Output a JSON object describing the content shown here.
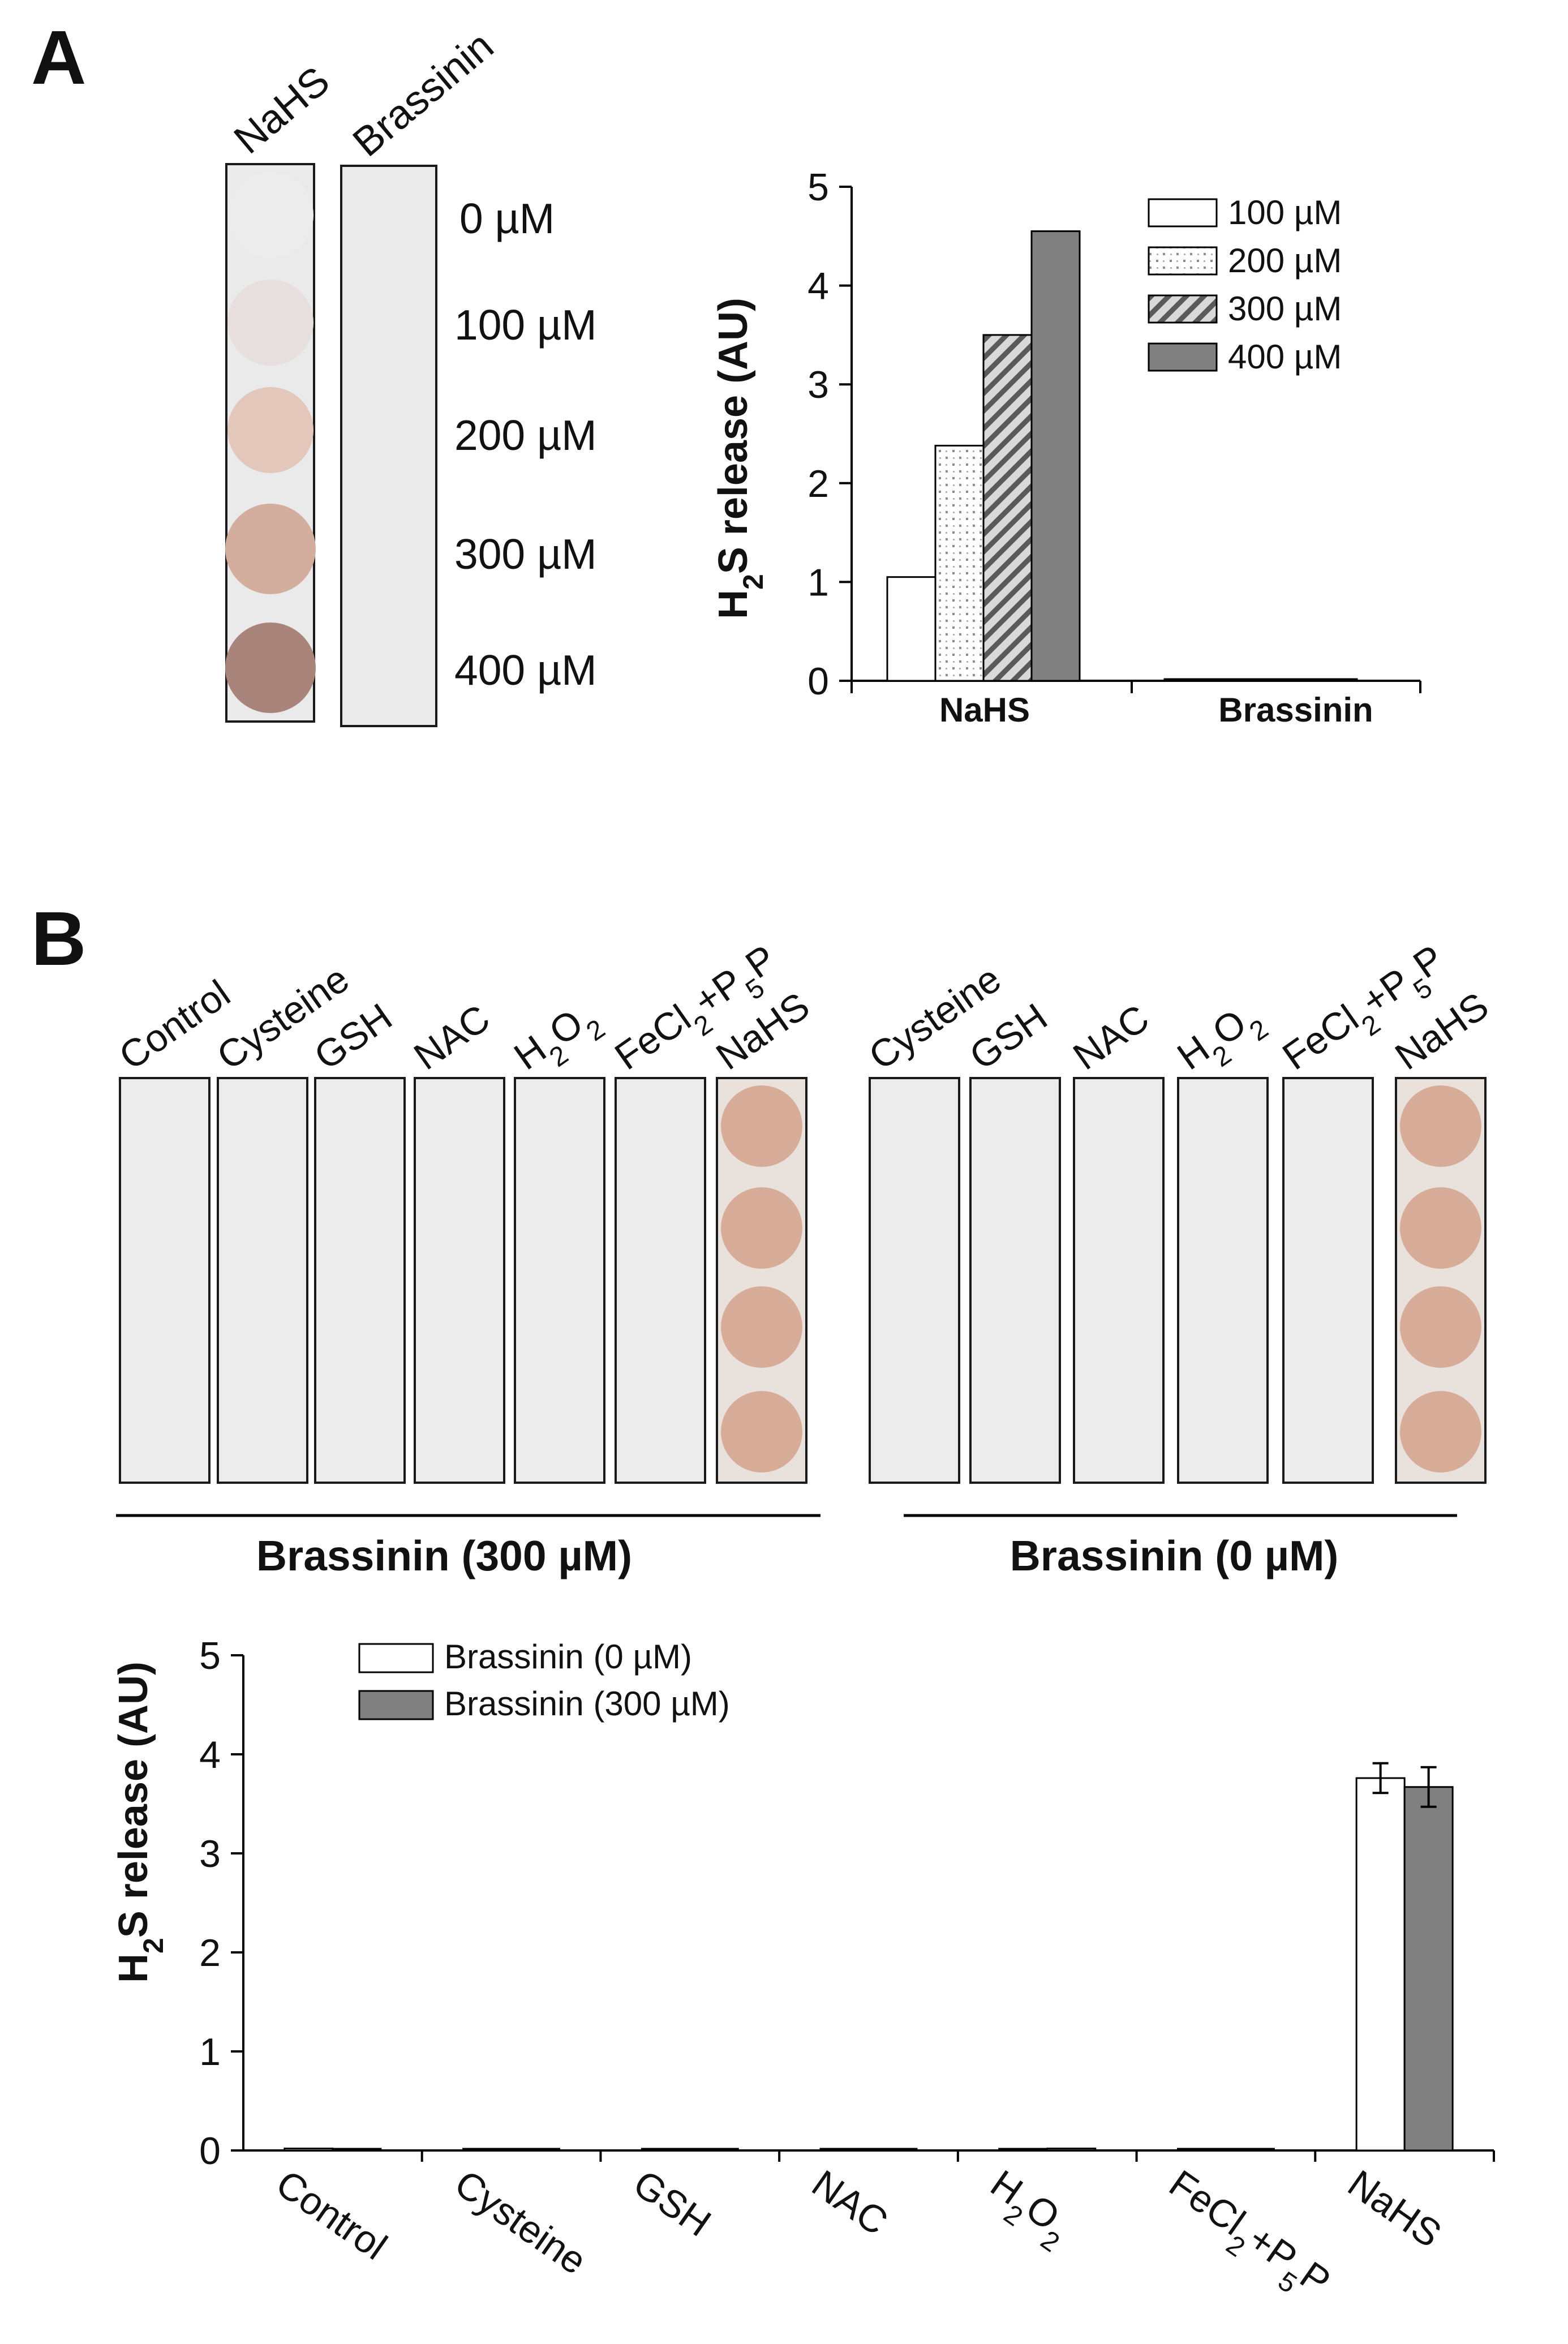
{
  "panel_a": {
    "label": "A",
    "strips": {
      "headers": [
        "NaHS",
        "Brassinin"
      ],
      "concentrations": [
        "0 µM",
        "100 µM",
        "200 µM",
        "300 µM",
        "400 µM"
      ],
      "nahs_spot_colors": [
        "#ececec",
        "#e6dfdd",
        "#e2c7ba",
        "#d3ae9f",
        "#a8847b"
      ],
      "strip_color": "#eaeaea"
    }
  },
  "panel_b": {
    "label": "B",
    "left_group": {
      "headers": [
        "Control",
        "Cysteine",
        "GSH",
        "NAC",
        "H2O2",
        "FeCl2+P5P",
        "NaHS"
      ],
      "caption": "Brassinin (300 µM)"
    },
    "right_group": {
      "headers": [
        "Cysteine",
        "GSH",
        "NAC",
        "H2O2",
        "FeCl2+P5P",
        "NaHS"
      ],
      "caption": "Brassinin (0 µM)"
    },
    "spot_color": "#d7ad9a"
  },
  "chart_data": [
    {
      "type": "bar",
      "panel": "A",
      "categories": [
        "NaHS",
        "Brassinin"
      ],
      "series": [
        {
          "name": "100 µM",
          "values": [
            1.05,
            0.0
          ],
          "fill": "white"
        },
        {
          "name": "200 µM",
          "values": [
            2.38,
            0.0
          ],
          "fill": "dots"
        },
        {
          "name": "300 µM",
          "values": [
            3.5,
            0.0
          ],
          "fill": "hatch"
        },
        {
          "name": "400 µM",
          "values": [
            4.55,
            0.0
          ],
          "fill": "gray"
        }
      ],
      "title": "",
      "xlabel": "",
      "ylabel": "H2S release (AU)",
      "ylim": [
        0,
        5
      ],
      "yticks": [
        "0",
        "1",
        "2",
        "3",
        "4",
        "5"
      ],
      "legend": "top-right"
    },
    {
      "type": "bar",
      "panel": "B",
      "categories": [
        "Control",
        "Cysteine",
        "GSH",
        "NAC",
        "H2O2",
        "FeCl2+P5P",
        "NaHS"
      ],
      "series": [
        {
          "name": "Brassinin (0 µM)",
          "values": [
            0.02,
            0.01,
            0.01,
            0.0,
            0.01,
            0.01,
            3.76
          ],
          "errors": [
            0.01,
            0.0,
            0.0,
            0.0,
            0.01,
            0.01,
            0.15
          ],
          "fill": "white"
        },
        {
          "name": "Brassinin (300 µM)",
          "values": [
            0.01,
            0.01,
            0.0,
            0.01,
            0.02,
            0.01,
            3.67
          ],
          "errors": [
            0.0,
            0.0,
            0.0,
            0.0,
            0.01,
            0.0,
            0.2
          ],
          "fill": "gray"
        }
      ],
      "title": "",
      "xlabel": "",
      "ylabel": "H2S release (AU)",
      "ylim": [
        0,
        5
      ],
      "yticks": [
        "0",
        "1",
        "2",
        "3",
        "4",
        "5"
      ],
      "legend": "top-left"
    }
  ],
  "colors": {
    "axis": "#000000",
    "bar_gray": "#808080",
    "bar_white": "#ffffff",
    "hatch_bg": "#d9d9d9",
    "hatch_line": "#5a5a5a",
    "dots_color": "#8c8c8c",
    "strip_border": "#1a1a1a"
  }
}
